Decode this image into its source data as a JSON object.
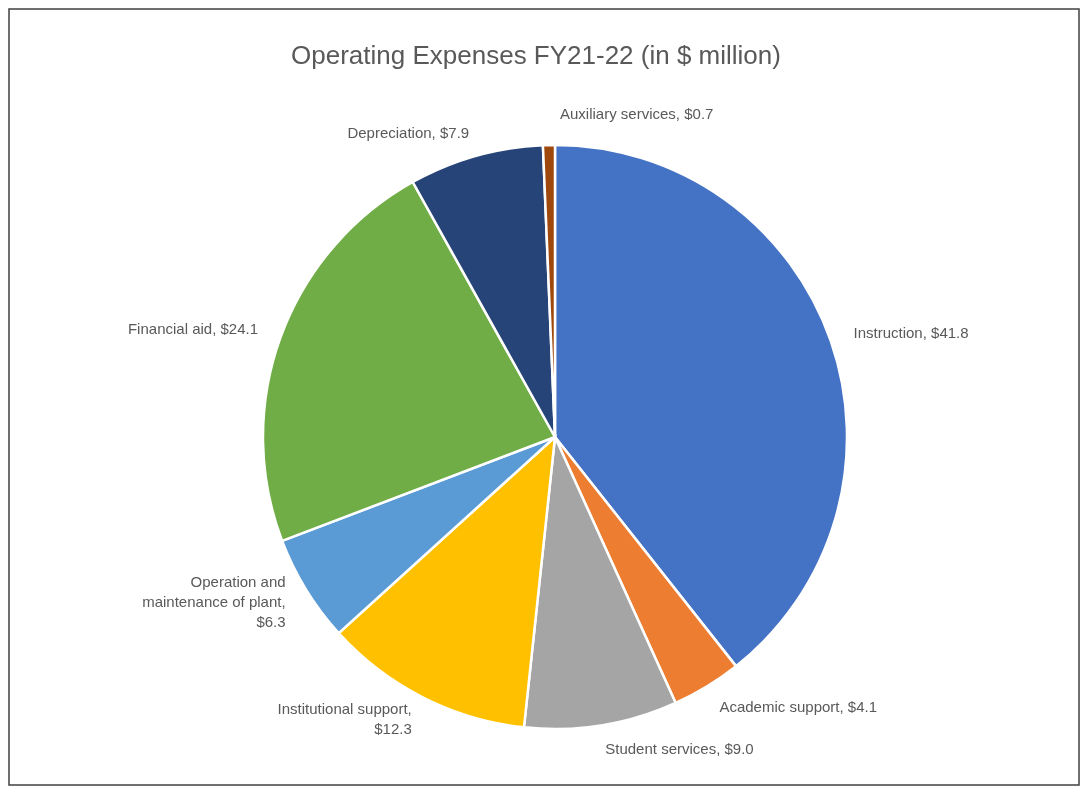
{
  "chart_data": {
    "type": "pie",
    "title": "Operating Expenses FY21-22 (in $ million)",
    "categories": [
      "Instruction, $41.8",
      "Academic support, $4.1",
      "Student services, $9.0",
      "Institutional support, $12.3",
      "Operation and maintenance of plant, $6.3",
      "Financial aid, $24.1",
      "Depreciation, $7.9",
      "Auxiliary services, $0.7"
    ],
    "values": [
      41.8,
      4.1,
      9.0,
      12.3,
      6.3,
      24.1,
      7.9,
      0.7
    ],
    "colors": [
      "#4472c4",
      "#ed7d31",
      "#a5a5a5",
      "#ffc000",
      "#5b9bd5",
      "#70ad47",
      "#264478",
      "#9e480e"
    ]
  }
}
